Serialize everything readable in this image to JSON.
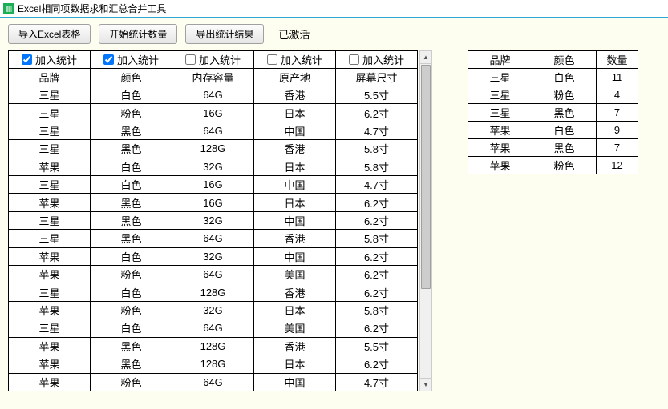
{
  "window": {
    "title": "Excel相同项数据求和汇总合并工具"
  },
  "toolbar": {
    "import_label": "导入Excel表格",
    "start_label": "开始统计数量",
    "export_label": "导出统计结果",
    "status": "已激活"
  },
  "left_table": {
    "check_label": "加入统计",
    "checks": [
      true,
      true,
      false,
      false,
      false
    ],
    "header_row": [
      "品牌",
      "颜色",
      "内存容量",
      "原产地",
      "屏幕尺寸"
    ],
    "rows": [
      [
        "三星",
        "白色",
        "64G",
        "香港",
        "5.5寸"
      ],
      [
        "三星",
        "粉色",
        "16G",
        "日本",
        "6.2寸"
      ],
      [
        "三星",
        "黑色",
        "64G",
        "中国",
        "4.7寸"
      ],
      [
        "三星",
        "黑色",
        "128G",
        "香港",
        "5.8寸"
      ],
      [
        "苹果",
        "白色",
        "32G",
        "日本",
        "5.8寸"
      ],
      [
        "三星",
        "白色",
        "16G",
        "中国",
        "4.7寸"
      ],
      [
        "苹果",
        "黑色",
        "16G",
        "日本",
        "6.2寸"
      ],
      [
        "三星",
        "黑色",
        "32G",
        "中国",
        "6.2寸"
      ],
      [
        "三星",
        "黑色",
        "64G",
        "香港",
        "5.8寸"
      ],
      [
        "苹果",
        "白色",
        "32G",
        "中国",
        "6.2寸"
      ],
      [
        "苹果",
        "粉色",
        "64G",
        "美国",
        "6.2寸"
      ],
      [
        "三星",
        "白色",
        "128G",
        "香港",
        "6.2寸"
      ],
      [
        "苹果",
        "粉色",
        "32G",
        "日本",
        "5.8寸"
      ],
      [
        "三星",
        "白色",
        "64G",
        "美国",
        "6.2寸"
      ],
      [
        "苹果",
        "黑色",
        "128G",
        "香港",
        "5.5寸"
      ],
      [
        "苹果",
        "黑色",
        "128G",
        "日本",
        "6.2寸"
      ],
      [
        "苹果",
        "粉色",
        "64G",
        "中国",
        "4.7寸"
      ]
    ]
  },
  "summary_table": {
    "headers": [
      "品牌",
      "颜色",
      "数量"
    ],
    "rows": [
      [
        "三星",
        "白色",
        "11"
      ],
      [
        "三星",
        "粉色",
        "4"
      ],
      [
        "三星",
        "黑色",
        "7"
      ],
      [
        "苹果",
        "白色",
        "9"
      ],
      [
        "苹果",
        "黑色",
        "7"
      ],
      [
        "苹果",
        "粉色",
        "12"
      ]
    ]
  },
  "colors": {
    "background": "#fdfdf0",
    "border": "#000000",
    "titlebar_border": "#2fa8d6",
    "icon_bg": "#1aaf54"
  }
}
